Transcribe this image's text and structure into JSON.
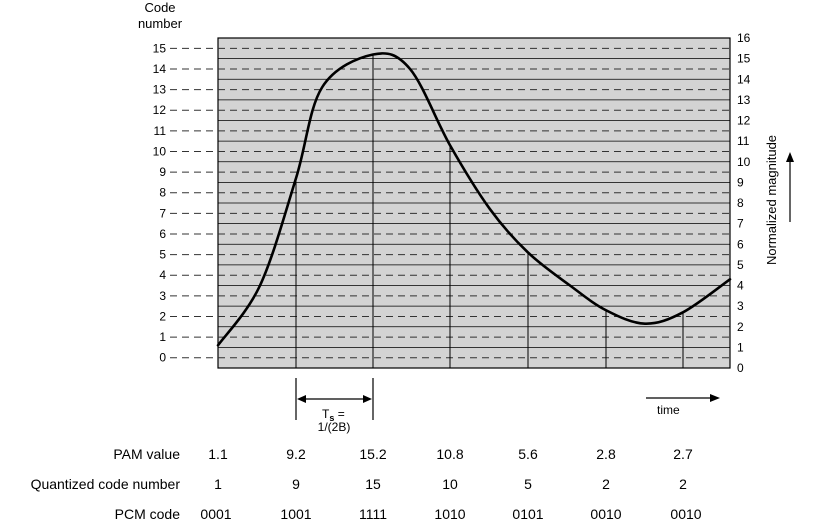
{
  "left_axis": {
    "title_line1": "Code",
    "title_line2": "number",
    "ticks": [
      "0",
      "1",
      "2",
      "3",
      "4",
      "5",
      "6",
      "7",
      "8",
      "9",
      "10",
      "11",
      "12",
      "13",
      "14",
      "15"
    ]
  },
  "right_axis": {
    "title": "Normalized magnitude",
    "ticks": [
      "0",
      "1",
      "2",
      "3",
      "4",
      "5",
      "6",
      "7",
      "8",
      "9",
      "10",
      "11",
      "12",
      "13",
      "14",
      "15",
      "16"
    ]
  },
  "sampling": {
    "ts_label_main": "T",
    "ts_label_sub": "s",
    "ts_label_eq": " =",
    "ts_formula": "1/(2B)"
  },
  "time_label": "time",
  "table": {
    "rows": [
      {
        "label": "PAM value",
        "values": [
          "1.1",
          "9.2",
          "15.2",
          "10.8",
          "5.6",
          "2.8",
          "2.7"
        ]
      },
      {
        "label": "Quantized code number",
        "values": [
          "1",
          "9",
          "15",
          "10",
          "5",
          "2",
          "2"
        ]
      },
      {
        "label": "PCM code",
        "values": [
          "0001",
          "1001",
          "1111",
          "1010",
          "0101",
          "0010",
          "0010"
        ]
      }
    ]
  },
  "curve": {
    "samples": [
      1.1,
      9.2,
      15.2,
      10.8,
      5.6,
      2.8,
      2.7
    ],
    "color": "#000000"
  },
  "colors": {
    "plot_fill": "#d3d3d3",
    "grid": "#000000",
    "dash": "#333333"
  }
}
